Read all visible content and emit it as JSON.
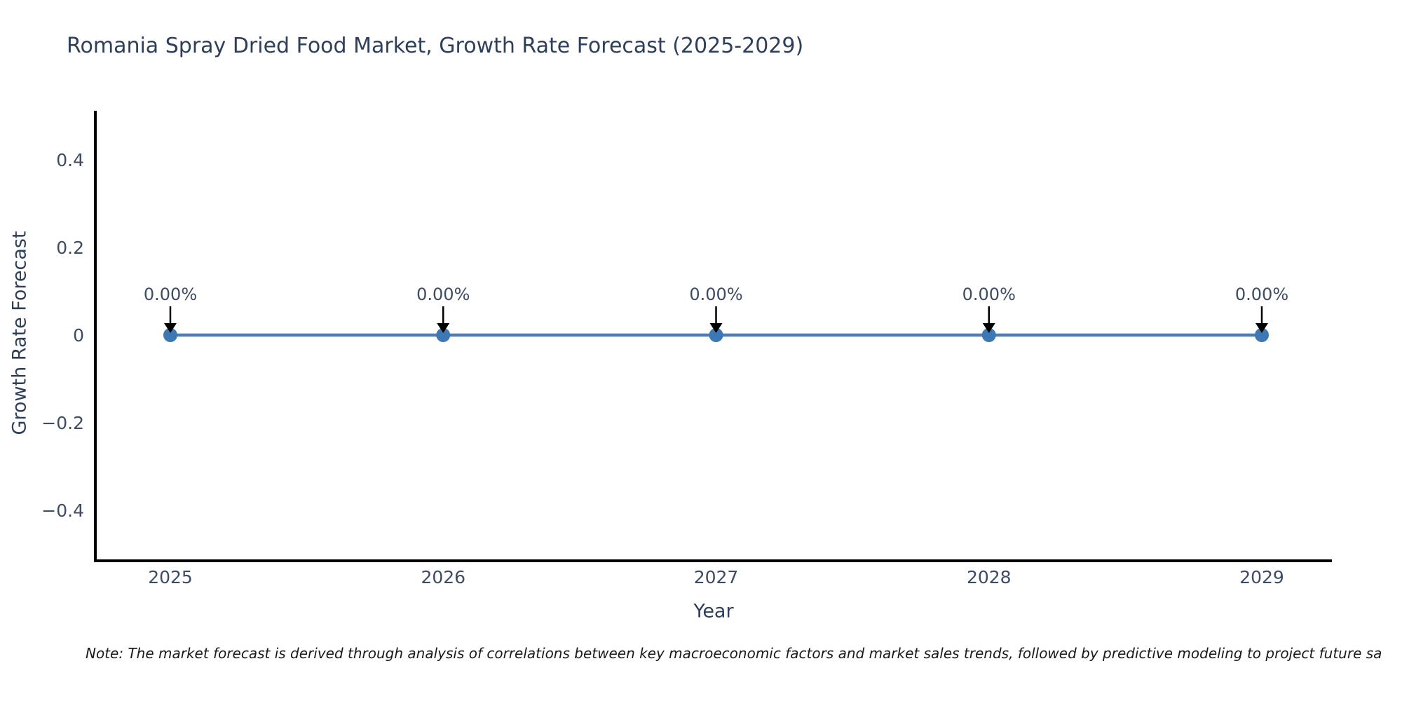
{
  "title": "Romania Spray Dried Food Market, Growth Rate Forecast (2025-2029)",
  "note": "Note: The market forecast is derived through analysis of correlations between key macroeconomic factors and market sales trends, followed by predictive modeling to project future sa",
  "chart_data": {
    "type": "line",
    "title": "Romania Spray Dried Food Market, Growth Rate Forecast (2025-2029)",
    "xlabel": "Year",
    "ylabel": "Growth Rate Forecast",
    "x": [
      2025,
      2026,
      2027,
      2028,
      2029
    ],
    "x_tick_labels": [
      "2025",
      "2026",
      "2027",
      "2028",
      "2029"
    ],
    "series": [
      {
        "name": "Growth Rate Forecast",
        "values": [
          0,
          0,
          0,
          0,
          0
        ]
      }
    ],
    "point_labels": [
      "0.00%",
      "0.00%",
      "0.00%",
      "0.00%",
      "0.00%"
    ],
    "y_tick_values": [
      0.4,
      0.2,
      0,
      -0.2,
      -0.4
    ],
    "y_tick_labels": [
      "0.4",
      "0.2",
      "0",
      "−0.2",
      "−0.4"
    ],
    "ylim": [
      -0.52,
      0.52
    ],
    "grid": false,
    "legend_position": "none",
    "colors": {
      "line": "#4b7cb2",
      "marker": "#3d78b4",
      "arrow": "#000000",
      "axis": "#000000",
      "title_text": "#2e3f5c",
      "tick_text": "#3d4c63",
      "note_text": "#1a1a1a"
    }
  }
}
